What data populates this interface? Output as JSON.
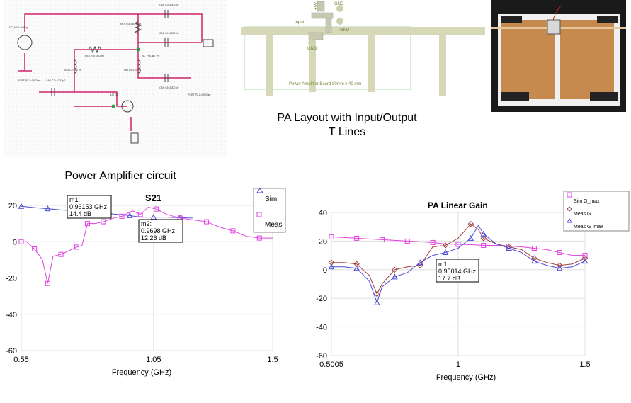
{
  "schematic": {
    "caption": "Power Amplifier circuit",
    "component_texts": [
      "CAP C3=1000 pF",
      "CAP C4=1000 pF",
      "RES R3=150 Ohm",
      "RES R4=1k Ohm",
      "IND L3=100 nH",
      "IND L4=100 nH",
      "CAP C2=1000 pF",
      "CAP C5=1000 pF",
      "PORT P1 Z=50 Ohm",
      "PORT P2 Z=50 Ohm",
      "DC_V V1 Battery",
      "SL_PROBE VP",
      "BJT Q1"
    ]
  },
  "layout": {
    "caption_line1": "PA Layout with Input/Output",
    "caption_line2": "T Lines",
    "board_label": "Power Amplifier Board 80mm x 40 mm",
    "pad_labels": [
      "+5V",
      "GND",
      "Input",
      "GND",
      "GND"
    ]
  },
  "photo": {
    "description_colors": {
      "board": "#c68a4e",
      "background": "#1a1a1a",
      "tape": "#222222",
      "center": "#ffffff"
    }
  },
  "chart_data": [
    {
      "type": "line",
      "title": "S21",
      "xlabel": "Frequency (GHz)",
      "ylabel": "",
      "xlim": [
        0.55,
        1.5
      ],
      "ylim": [
        -60,
        20
      ],
      "xticks": [
        "0.55",
        "1.05",
        "1.5"
      ],
      "yticks": [
        "20",
        "0",
        "-20",
        "-40",
        "-60"
      ],
      "legend_position": "top-right",
      "series": [
        {
          "name": "Sim",
          "color": "#4a4ad8",
          "marker": "triangle",
          "x": [
            0.55,
            0.6,
            0.65,
            0.7,
            0.75,
            0.8,
            0.85,
            0.9,
            0.96,
            1.0,
            1.05,
            1.1,
            1.15,
            1.2
          ],
          "y": [
            19.5,
            18.8,
            18.2,
            17.5,
            17,
            16.5,
            16,
            15.2,
            14.4,
            13.5,
            13.5,
            13.5,
            13.2,
            13
          ]
        },
        {
          "name": "Meas",
          "color": "#e040e0",
          "marker": "square",
          "x": [
            0.55,
            0.57,
            0.6,
            0.63,
            0.65,
            0.67,
            0.7,
            0.73,
            0.76,
            0.78,
            0.8,
            0.83,
            0.86,
            0.9,
            0.93,
            0.97,
            1.0,
            1.03,
            1.06,
            1.1,
            1.15,
            1.2,
            1.25,
            1.3,
            1.35,
            1.4,
            1.45,
            1.5
          ],
          "y": [
            0,
            0,
            -4,
            -10,
            -23,
            -8,
            -7,
            -5,
            -3,
            -2,
            10,
            10,
            11,
            13,
            14,
            17,
            15,
            19,
            18,
            15,
            13,
            12,
            11,
            8,
            6,
            3,
            2,
            2
          ]
        }
      ],
      "markers": [
        {
          "name": "m1:",
          "line1": "0.96153 GHz",
          "line2": "14.4 dB"
        },
        {
          "name": "m2:",
          "line1": "0.9698 GHz",
          "line2": "12.26 dB"
        }
      ]
    },
    {
      "type": "line",
      "title": "PA Linear Gain",
      "xlabel": "Frequency (GHz)",
      "ylabel": "",
      "xlim": [
        0.5005,
        1.5
      ],
      "ylim": [
        -60,
        40
      ],
      "xticks": [
        "0.5005",
        "1",
        "1.5"
      ],
      "yticks": [
        "40",
        "20",
        "0",
        "-20",
        "-40",
        "-60"
      ],
      "legend_position": "top-right",
      "series": [
        {
          "name": "Sim G_max",
          "color": "#e040e0",
          "marker": "square",
          "x": [
            0.5005,
            0.55,
            0.6,
            0.65,
            0.7,
            0.75,
            0.8,
            0.85,
            0.9,
            0.95,
            1.0,
            1.05,
            1.1,
            1.15,
            1.2,
            1.25,
            1.3,
            1.35,
            1.4,
            1.45,
            1.5
          ],
          "y": [
            23,
            22.5,
            22,
            21.5,
            21,
            20.5,
            20,
            19.5,
            19,
            18,
            17.7,
            17.5,
            17,
            17,
            16.5,
            16,
            15,
            14,
            12,
            10,
            10
          ]
        },
        {
          "name": "Meas G",
          "color": "#a04040",
          "marker": "diamond",
          "x": [
            0.5005,
            0.55,
            0.6,
            0.65,
            0.68,
            0.7,
            0.75,
            0.8,
            0.85,
            0.9,
            0.95,
            1.0,
            1.05,
            1.08,
            1.1,
            1.15,
            1.2,
            1.25,
            1.3,
            1.35,
            1.4,
            1.45,
            1.5
          ],
          "y": [
            5,
            5,
            4,
            -4,
            -17,
            -10,
            0,
            2,
            3,
            16,
            17,
            22,
            32,
            28,
            22,
            18,
            16,
            14,
            8,
            5,
            3,
            4,
            8
          ]
        },
        {
          "name": "Meas G_max",
          "color": "#4a4ad8",
          "marker": "triangle",
          "x": [
            0.5005,
            0.55,
            0.6,
            0.65,
            0.68,
            0.7,
            0.75,
            0.8,
            0.85,
            0.9,
            0.95,
            1.0,
            1.05,
            1.08,
            1.1,
            1.15,
            1.2,
            1.25,
            1.3,
            1.35,
            1.4,
            1.45,
            1.5
          ],
          "y": [
            2,
            2,
            1,
            -8,
            -23,
            -12,
            -5,
            -2,
            5,
            10,
            12,
            15,
            22,
            31,
            25,
            18,
            15,
            12,
            6,
            3,
            1,
            2,
            6
          ]
        }
      ],
      "markers": [
        {
          "name": "m1:",
          "line1": "0.95014 GHz",
          "line2": "17.7 dB"
        }
      ]
    }
  ]
}
